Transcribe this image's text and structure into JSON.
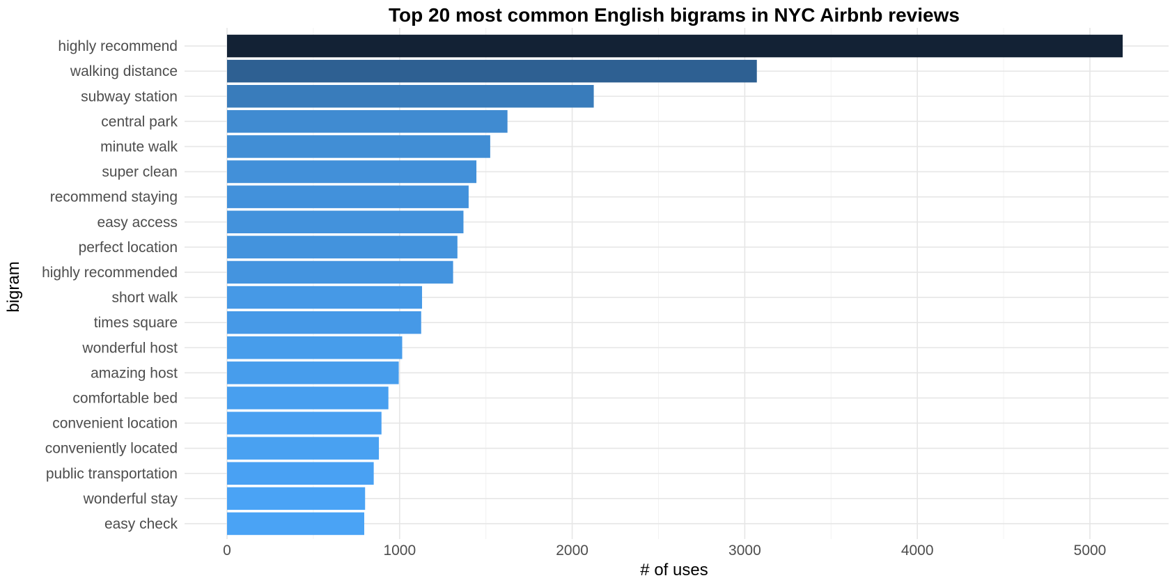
{
  "chart_data": {
    "type": "bar",
    "orientation": "horizontal",
    "title": "Top 20 most common English bigrams in NYC Airbnb reviews",
    "xlabel": "# of uses",
    "ylabel": "bigram",
    "xlim": [
      0,
      5400
    ],
    "xticks": [
      0,
      1000,
      2000,
      3000,
      4000,
      5000
    ],
    "grid": true,
    "legend": "none",
    "color_scale": {
      "low": "#4aa3f5",
      "high": "#132235"
    },
    "categories": [
      "highly recommend",
      "walking distance",
      "subway station",
      "central park",
      "minute walk",
      "super clean",
      "recommend staying",
      "easy access",
      "perfect location",
      "highly recommended",
      "short walk",
      "times square",
      "wonderful host",
      "amazing host",
      "comfortable bed",
      "convenient location",
      "conveniently located",
      "public transportation",
      "wonderful stay",
      "easy check"
    ],
    "values": [
      5190,
      3070,
      2125,
      1625,
      1525,
      1445,
      1400,
      1370,
      1335,
      1310,
      1130,
      1125,
      1015,
      995,
      935,
      895,
      880,
      850,
      800,
      795
    ]
  }
}
